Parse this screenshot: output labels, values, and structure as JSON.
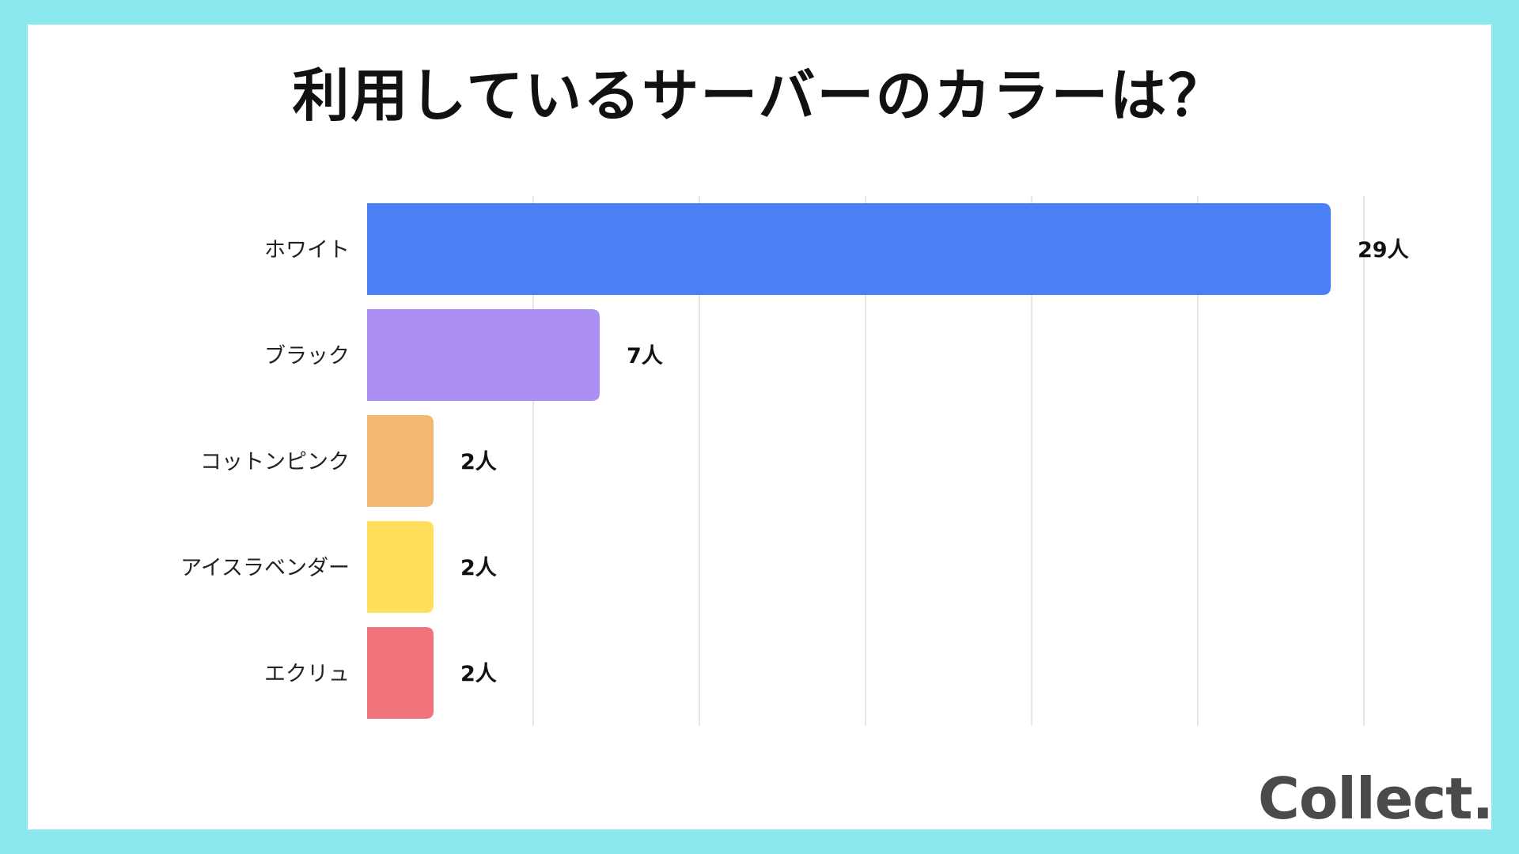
{
  "title": "利用しているサーバーのカラーは？",
  "brand": "Collect.",
  "colors": {
    "frame": "#8be8ee",
    "background": "#ffffff",
    "grid": "#dddddd"
  },
  "chart_data": {
    "type": "bar",
    "orientation": "horizontal",
    "title": "利用しているサーバーのカラーは？",
    "categories": [
      "ホワイト",
      "ブラック",
      "コットンピンク",
      "アイスラベンダー",
      "エクリュ"
    ],
    "values": [
      29,
      7,
      2,
      2,
      2
    ],
    "value_labels": [
      "29人",
      "7人",
      "2人",
      "2人",
      "2人"
    ],
    "bar_colors": [
      "#4a80f5",
      "#ac8ff4",
      "#f3b870",
      "#ffdf5c",
      "#f0737b"
    ],
    "unit": "人",
    "xlim": [
      0,
      30
    ],
    "grid": true,
    "legend": "none"
  }
}
